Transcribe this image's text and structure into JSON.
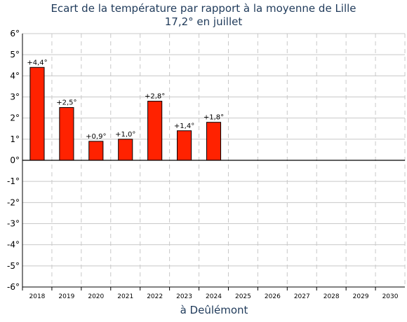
{
  "chart_data": {
    "type": "bar",
    "title": "Ecart de la température par rapport à la moyenne de Lille",
    "subtitle": "17,2° en juillet",
    "xlabel": "à Deûlémont",
    "ylabel": "",
    "categories": [
      "2018",
      "2019",
      "2020",
      "2021",
      "2022",
      "2023",
      "2024",
      "2025",
      "2026",
      "2027",
      "2028",
      "2029",
      "2030"
    ],
    "values": [
      4.4,
      2.5,
      0.9,
      1.0,
      2.8,
      1.4,
      1.8,
      null,
      null,
      null,
      null,
      null,
      null
    ],
    "data_labels": [
      "+4,4°",
      "+2,5°",
      "+0,9°",
      "+1,0°",
      "+2,8°",
      "+1,4°",
      "+1,8°",
      "",
      "",
      "",
      "",
      "",
      ""
    ],
    "y_ticks": [
      6,
      5,
      4,
      3,
      2,
      1,
      0,
      -1,
      -2,
      -3,
      -4,
      -5,
      -6
    ],
    "y_tick_labels": [
      "6°",
      "5°",
      "4°",
      "3°",
      "2°",
      "1°",
      "0°",
      "-1°",
      "-2°",
      "-3°",
      "-4°",
      "-5°",
      "-6°"
    ],
    "ylim": [
      -6,
      6
    ],
    "grid": true,
    "bar_color": "#ff2200",
    "grid_color": "#c8c8c8"
  }
}
